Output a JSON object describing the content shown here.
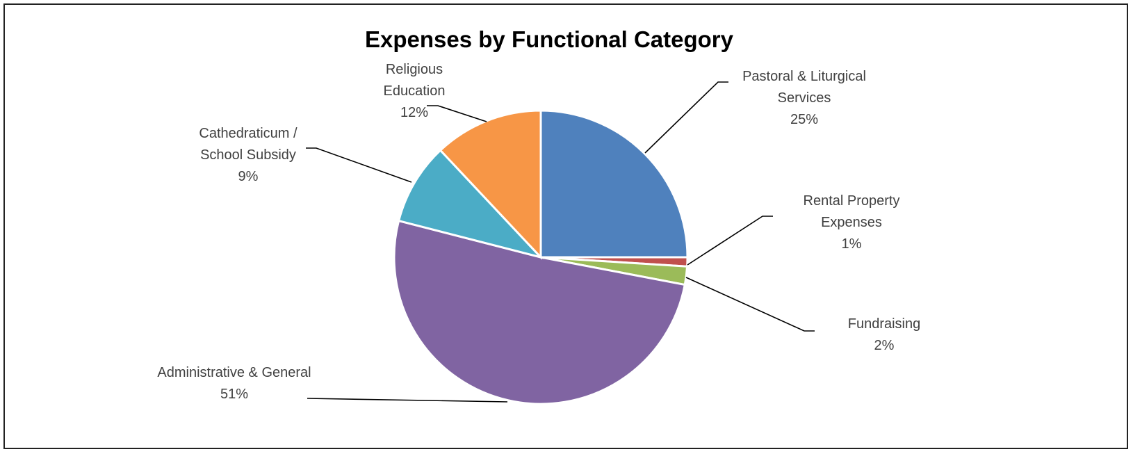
{
  "chart_data": {
    "type": "pie",
    "title": "Expenses by Functional Category",
    "slices": [
      {
        "label_lines": [
          "Pastoral & Liturgical",
          "Services"
        ],
        "value": 25,
        "value_label": "25%",
        "color": "#4F81BD"
      },
      {
        "label_lines": [
          "Rental Property",
          "Expenses"
        ],
        "value": 1,
        "value_label": "1%",
        "color": "#C0504D"
      },
      {
        "label_lines": [
          "Fundraising"
        ],
        "value": 2,
        "value_label": "2%",
        "color": "#9BBB59"
      },
      {
        "label_lines": [
          "Administrative & General"
        ],
        "value": 51,
        "value_label": "51%",
        "color": "#8064A2"
      },
      {
        "label_lines": [
          "Cathedraticum /",
          "School Subsidy"
        ],
        "value": 9,
        "value_label": "9%",
        "color": "#4BACC6"
      },
      {
        "label_lines": [
          "Religious",
          "Education"
        ],
        "value": 12,
        "value_label": "12%",
        "color": "#F79646"
      }
    ],
    "start_angle": "12 o'clock",
    "direction": "clockwise",
    "legend": "none (data labels with leader lines)"
  }
}
